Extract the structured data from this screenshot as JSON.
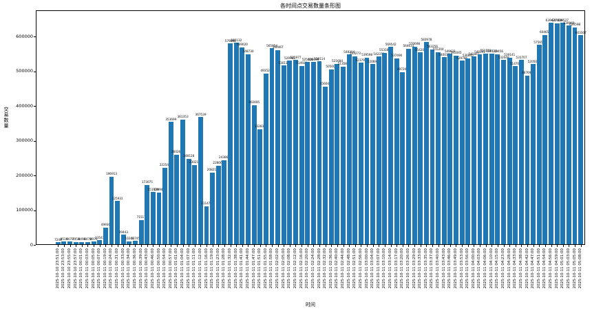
{
  "chart_data": {
    "type": "bar",
    "title": "各时间点交易数量条形图",
    "xlabel": "时间",
    "ylabel": "交易数量",
    "bar_color": "#1f77b4",
    "grid": false,
    "legend": "none",
    "ylim": [
      0,
      660000
    ],
    "yticks": [
      0,
      100000,
      200000,
      300000,
      400000,
      500000,
      600000
    ],
    "categories": [
      "2025-10-10 23:51:00",
      "2025-10-10 23:53:00",
      "2025-10-10 23:55:00",
      "2025-10-10 23:57:00",
      "2025-10-11 00:01:00",
      "2025-10-11 00:03:00",
      "2025-10-11 00:05:00",
      "2025-10-11 00:07:00",
      "2025-10-11 00:19:00",
      "2025-10-11 00:24:00",
      "2025-10-11 00:31:00",
      "2025-10-11 00:33:00",
      "2025-10-11 00:34:00",
      "2025-10-11 00:36:00",
      "2025-10-11 00:39:00",
      "2025-10-11 00:43:00",
      "2025-10-11 00:46:00",
      "2025-10-11 00:50:00",
      "2025-10-11 00:54:00",
      "2025-10-11 00:57:00",
      "2025-10-11 01:01:00",
      "2025-10-11 01:04:00",
      "2025-10-11 01:07:00",
      "2025-10-11 01:11:00",
      "2025-10-11 01:12:00",
      "2025-10-11 01:16:00",
      "2025-10-11 01:19:00",
      "2025-10-11 01:23:00",
      "2025-10-11 01:28:00",
      "2025-10-11 01:32:00",
      "2025-10-11 01:38:00",
      "2025-10-11 01:41:00",
      "2025-10-11 01:44:00",
      "2025-10-11 01:47:00",
      "2025-10-11 01:51:00",
      "2025-10-11 01:55:00",
      "2025-10-11 01:58:00",
      "2025-10-11 02:02:00",
      "2025-10-11 02:05:00",
      "2025-10-11 02:08:00",
      "2025-10-11 02:12:00",
      "2025-10-11 02:16:00",
      "2025-10-11 02:20:00",
      "2025-10-11 02:24:00",
      "2025-10-11 02:28:00",
      "2025-10-11 02:32:00",
      "2025-10-11 02:36:00",
      "2025-10-11 02:40:00",
      "2025-10-11 02:44:00",
      "2025-10-11 02:48:00",
      "2025-10-11 02:51:00",
      "2025-10-11 02:56:00",
      "2025-10-11 03:00:00",
      "2025-10-11 03:04:00",
      "2025-10-11 03:07:00",
      "2025-10-11 03:10:00",
      "2025-10-11 03:14:00",
      "2025-10-11 03:17:00",
      "2025-10-11 03:20:00",
      "2025-10-11 03:26:00",
      "2025-10-11 03:29:00",
      "2025-10-11 03:33:00",
      "2025-10-11 03:35:00",
      "2025-10-11 03:37:00",
      "2025-10-11 03:40:00",
      "2025-10-11 03:43:00",
      "2025-10-11 03:46:00",
      "2025-10-11 03:49:00",
      "2025-10-11 03:53:00",
      "2025-10-11 03:56:00",
      "2025-10-11 04:00:00",
      "2025-10-11 04:03:00",
      "2025-10-11 04:06:00",
      "2025-10-11 04:10:00",
      "2025-10-11 04:15:00",
      "2025-10-11 04:23:00",
      "2025-10-11 04:28:00",
      "2025-10-11 04:33:00",
      "2025-10-11 04:38:00",
      "2025-10-11 04:42:00",
      "2025-10-11 04:47:00",
      "2025-10-11 04:51:00",
      "2025-10-11 04:54:00",
      "2025-10-11 04:56:00",
      "2025-10-11 04:59:00",
      "2025-10-11 05:01:00",
      "2025-10-11 05:03:00",
      "2025-10-11 05:05:00",
      "2025-10-11 05:08:00"
    ],
    "values": [
      7248,
      9516,
      9078,
      7958,
      8496,
      8478,
      8976,
      13543,
      49936,
      196913,
      125931,
      29443,
      10248,
      11745,
      71517,
      173075,
      151929,
      150944,
      222548,
      353699,
      260269,
      361353,
      248128,
      230214,
      367539,
      111475,
      208212,
      228061,
      243860,
      579880,
      582132,
      569020,
      548730,
      402695,
      332834,
      493525,
      565954,
      560467,
      516118,
      529983,
      531977,
      514928,
      525806,
      526096,
      528114,
      456045,
      505003,
      521684,
      513581,
      548304,
      543273,
      523797,
      539598,
      520696,
      542376,
      553189,
      569542,
      537490,
      497203,
      564631,
      570698,
      554208,
      583978,
      563256,
      555204,
      540017,
      549621,
      545045,
      529786,
      536845,
      541841,
      548191,
      551218,
      550172,
      549456,
      532048,
      539141,
      514706,
      531707,
      487698,
      520507,
      575658,
      604655,
      639420,
      637806,
      639527,
      630969,
      626598,
      603307
    ]
  }
}
